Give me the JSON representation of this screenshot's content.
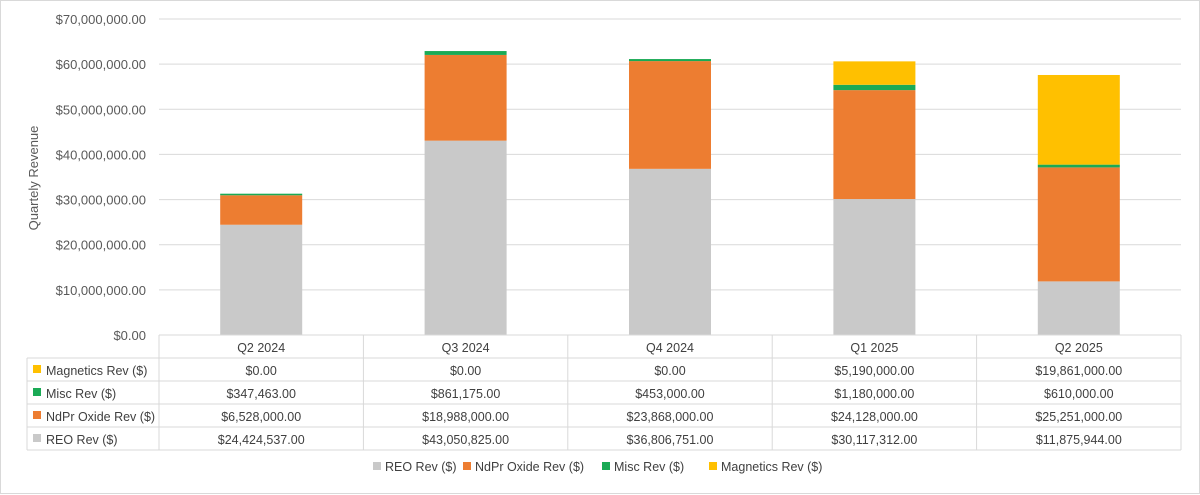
{
  "chart_data": {
    "type": "bar",
    "stacked": true,
    "ylabel": "Quartely Revenue",
    "ylim": [
      0,
      70000000
    ],
    "y_tick_step": 10000000,
    "grid": true,
    "legend_position": "bottom",
    "categories": [
      "Q2 2024",
      "Q3 2024",
      "Q4 2024",
      "Q1 2025",
      "Q2 2025"
    ],
    "y_tick_labels": [
      "$0.00",
      "$10,000,000.00",
      "$20,000,000.00",
      "$30,000,000.00",
      "$40,000,000.00",
      "$50,000,000.00",
      "$60,000,000.00",
      "$70,000,000.00"
    ],
    "series": [
      {
        "name": "REO Rev ($)",
        "color": "#c9c9c9",
        "values": [
          24424537,
          43050825,
          36806751,
          30117312,
          11875944
        ],
        "value_labels": [
          "$24,424,537.00",
          "$43,050,825.00",
          "$36,806,751.00",
          "$30,117,312.00",
          "$11,875,944.00"
        ]
      },
      {
        "name": "NdPr Oxide Rev ($)",
        "color": "#ed7d31",
        "values": [
          6528000,
          18988000,
          23868000,
          24128000,
          25251000
        ],
        "value_labels": [
          "$6,528,000.00",
          "$18,988,000.00",
          "$23,868,000.00",
          "$24,128,000.00",
          "$25,251,000.00"
        ]
      },
      {
        "name": "Misc Rev ($)",
        "color": "#1aaa55",
        "values": [
          347463,
          861175,
          453000,
          1180000,
          610000
        ],
        "value_labels": [
          "$347,463.00",
          "$861,175.00",
          "$453,000.00",
          "$1,180,000.00",
          "$610,000.00"
        ]
      },
      {
        "name": "Magnetics Rev ($)",
        "color": "#ffc000",
        "values": [
          0,
          0,
          0,
          5190000,
          19861000
        ],
        "value_labels": [
          "$0.00",
          "$0.00",
          "$0.00",
          "$5,190,000.00",
          "$19,861,000.00"
        ]
      }
    ],
    "table_row_order": [
      "Magnetics Rev ($)",
      "Misc Rev ($)",
      "NdPr Oxide Rev ($)",
      "REO Rev ($)"
    ],
    "legend_order": [
      "REO Rev ($)",
      "NdPr Oxide Rev ($)",
      "Misc Rev ($)",
      "Magnetics Rev ($)"
    ]
  }
}
